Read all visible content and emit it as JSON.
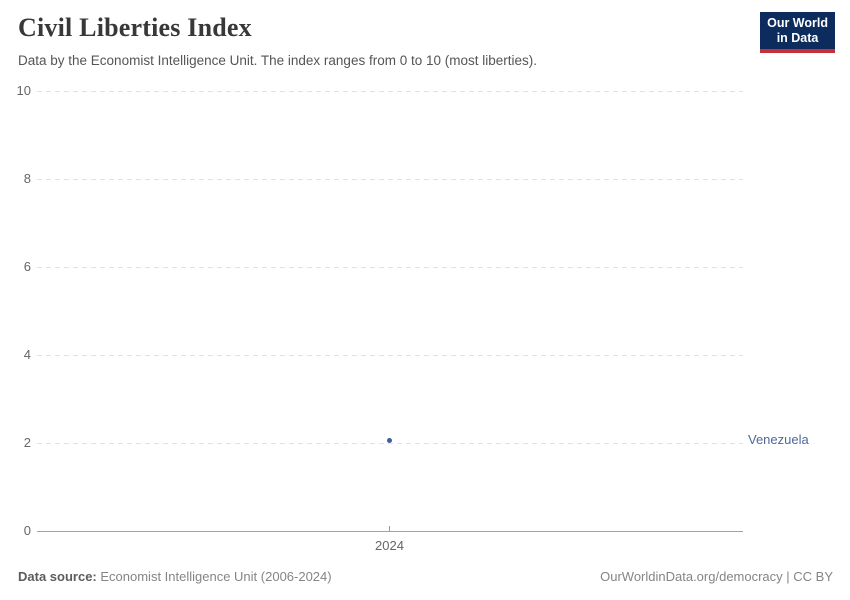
{
  "header": {
    "title": "Civil Liberties Index",
    "subtitle": "Data by the Economist Intelligence Unit. The index ranges from 0 to 10 (most liberties).",
    "logo": {
      "line1": "Our World",
      "line2": "in Data"
    }
  },
  "chart_data": {
    "type": "scatter",
    "title": "Civil Liberties Index",
    "x": [
      2024
    ],
    "series": [
      {
        "name": "Venezuela",
        "values": [
          2.06
        ],
        "color": "#3e5f9e"
      }
    ],
    "xlabel": "",
    "ylabel": "",
    "xticks": [
      "2024"
    ],
    "yticks": [
      "0",
      "2",
      "4",
      "6",
      "8",
      "10"
    ],
    "ylim": [
      0,
      10
    ],
    "grid": "horizontal-dashed",
    "legend_position": "right-of-point"
  },
  "colors": {
    "series": "#3e5f9e",
    "entity_label": "#4c6a9c",
    "gridline": "#e2e2e2",
    "axis_line": "#a3a3a3",
    "logo_background": "#0b2c5d",
    "logo_accent": "#c32f3d"
  },
  "footer": {
    "source_label": "Data source:",
    "source_value": " Economist Intelligence Unit (2006-2024)",
    "rights": "OurWorldinData.org/democracy | CC BY"
  }
}
